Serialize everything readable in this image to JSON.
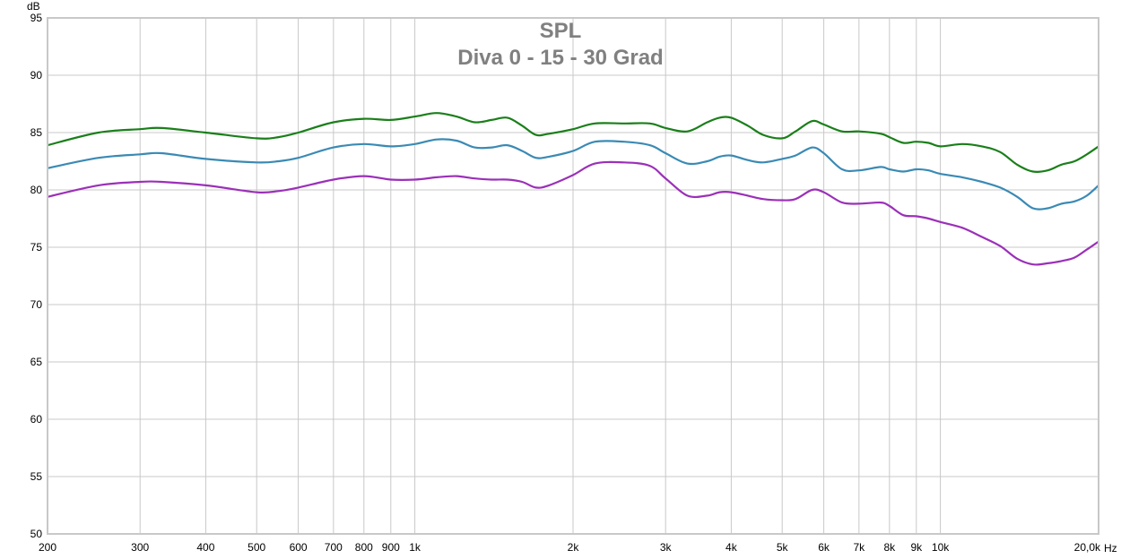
{
  "chart_data": {
    "type": "line",
    "title": "SPL",
    "subtitle": "Diva 0 - 15 - 30 Grad",
    "ylabel": "dB",
    "xlabel": "Hz",
    "x_scale": "log",
    "xlim": [
      200,
      20000
    ],
    "ylim": [
      50,
      95
    ],
    "grid": true,
    "y_ticks": [
      50,
      55,
      60,
      65,
      70,
      75,
      80,
      85,
      90,
      95
    ],
    "x_ticks": [
      {
        "value": 200,
        "label": "200"
      },
      {
        "value": 300,
        "label": "300"
      },
      {
        "value": 400,
        "label": "400"
      },
      {
        "value": 500,
        "label": "500"
      },
      {
        "value": 600,
        "label": "600"
      },
      {
        "value": 700,
        "label": "700"
      },
      {
        "value": 800,
        "label": "800"
      },
      {
        "value": 900,
        "label": "900"
      },
      {
        "value": 1000,
        "label": "1k"
      },
      {
        "value": 2000,
        "label": "2k"
      },
      {
        "value": 3000,
        "label": "3k"
      },
      {
        "value": 4000,
        "label": "4k"
      },
      {
        "value": 5000,
        "label": "5k"
      },
      {
        "value": 6000,
        "label": "6k"
      },
      {
        "value": 7000,
        "label": "7k"
      },
      {
        "value": 8000,
        "label": "8k"
      },
      {
        "value": 9000,
        "label": "9k"
      },
      {
        "value": 10000,
        "label": "10k"
      },
      {
        "value": 20000,
        "label": "20,0k"
      }
    ],
    "series": [
      {
        "color": "#1a7f1a",
        "points": [
          [
            200,
            83.9
          ],
          [
            250,
            85.0
          ],
          [
            300,
            85.3
          ],
          [
            330,
            85.4
          ],
          [
            400,
            85.0
          ],
          [
            500,
            84.5
          ],
          [
            550,
            84.6
          ],
          [
            600,
            85.0
          ],
          [
            700,
            85.9
          ],
          [
            800,
            86.2
          ],
          [
            900,
            86.1
          ],
          [
            1000,
            86.4
          ],
          [
            1100,
            86.7
          ],
          [
            1200,
            86.4
          ],
          [
            1300,
            85.9
          ],
          [
            1400,
            86.1
          ],
          [
            1500,
            86.3
          ],
          [
            1600,
            85.6
          ],
          [
            1700,
            84.8
          ],
          [
            1800,
            84.9
          ],
          [
            2000,
            85.3
          ],
          [
            2200,
            85.8
          ],
          [
            2500,
            85.8
          ],
          [
            2800,
            85.8
          ],
          [
            3000,
            85.4
          ],
          [
            3300,
            85.1
          ],
          [
            3600,
            85.9
          ],
          [
            3800,
            86.3
          ],
          [
            4000,
            86.3
          ],
          [
            4300,
            85.6
          ],
          [
            4600,
            84.8
          ],
          [
            5000,
            84.5
          ],
          [
            5300,
            85.1
          ],
          [
            5700,
            86.0
          ],
          [
            6000,
            85.7
          ],
          [
            6500,
            85.1
          ],
          [
            7000,
            85.1
          ],
          [
            7700,
            84.9
          ],
          [
            8000,
            84.6
          ],
          [
            8500,
            84.1
          ],
          [
            9000,
            84.2
          ],
          [
            9500,
            84.1
          ],
          [
            10000,
            83.8
          ],
          [
            11000,
            84.0
          ],
          [
            12000,
            83.8
          ],
          [
            13000,
            83.3
          ],
          [
            14000,
            82.2
          ],
          [
            15000,
            81.6
          ],
          [
            16000,
            81.7
          ],
          [
            17000,
            82.2
          ],
          [
            18000,
            82.5
          ],
          [
            19000,
            83.1
          ],
          [
            20000,
            83.8
          ]
        ]
      },
      {
        "color": "#3a8ab4",
        "points": [
          [
            200,
            81.9
          ],
          [
            250,
            82.8
          ],
          [
            300,
            83.1
          ],
          [
            330,
            83.2
          ],
          [
            400,
            82.7
          ],
          [
            500,
            82.4
          ],
          [
            550,
            82.5
          ],
          [
            600,
            82.8
          ],
          [
            700,
            83.7
          ],
          [
            800,
            84.0
          ],
          [
            900,
            83.8
          ],
          [
            1000,
            84.0
          ],
          [
            1100,
            84.4
          ],
          [
            1200,
            84.3
          ],
          [
            1300,
            83.7
          ],
          [
            1400,
            83.7
          ],
          [
            1500,
            83.9
          ],
          [
            1600,
            83.4
          ],
          [
            1700,
            82.8
          ],
          [
            1800,
            82.9
          ],
          [
            2000,
            83.4
          ],
          [
            2200,
            84.2
          ],
          [
            2500,
            84.2
          ],
          [
            2800,
            83.9
          ],
          [
            3000,
            83.2
          ],
          [
            3300,
            82.3
          ],
          [
            3600,
            82.5
          ],
          [
            3800,
            82.9
          ],
          [
            4000,
            83.0
          ],
          [
            4300,
            82.6
          ],
          [
            4600,
            82.4
          ],
          [
            5000,
            82.7
          ],
          [
            5300,
            83.0
          ],
          [
            5700,
            83.7
          ],
          [
            6000,
            83.2
          ],
          [
            6500,
            81.8
          ],
          [
            7000,
            81.7
          ],
          [
            7700,
            82.0
          ],
          [
            8000,
            81.8
          ],
          [
            8500,
            81.6
          ],
          [
            9000,
            81.8
          ],
          [
            9500,
            81.7
          ],
          [
            10000,
            81.4
          ],
          [
            11000,
            81.1
          ],
          [
            12000,
            80.7
          ],
          [
            13000,
            80.2
          ],
          [
            14000,
            79.4
          ],
          [
            15000,
            78.4
          ],
          [
            16000,
            78.4
          ],
          [
            17000,
            78.8
          ],
          [
            18000,
            79.0
          ],
          [
            19000,
            79.5
          ],
          [
            20000,
            80.4
          ]
        ]
      },
      {
        "color": "#9b30b8",
        "points": [
          [
            200,
            79.4
          ],
          [
            250,
            80.4
          ],
          [
            300,
            80.7
          ],
          [
            330,
            80.7
          ],
          [
            400,
            80.4
          ],
          [
            500,
            79.8
          ],
          [
            550,
            79.9
          ],
          [
            600,
            80.2
          ],
          [
            700,
            80.9
          ],
          [
            800,
            81.2
          ],
          [
            900,
            80.9
          ],
          [
            1000,
            80.9
          ],
          [
            1100,
            81.1
          ],
          [
            1200,
            81.2
          ],
          [
            1300,
            81.0
          ],
          [
            1400,
            80.9
          ],
          [
            1500,
            80.9
          ],
          [
            1600,
            80.7
          ],
          [
            1700,
            80.2
          ],
          [
            1800,
            80.4
          ],
          [
            2000,
            81.3
          ],
          [
            2200,
            82.3
          ],
          [
            2500,
            82.4
          ],
          [
            2800,
            82.1
          ],
          [
            3000,
            81.0
          ],
          [
            3300,
            79.5
          ],
          [
            3600,
            79.5
          ],
          [
            3800,
            79.8
          ],
          [
            4000,
            79.8
          ],
          [
            4300,
            79.5
          ],
          [
            4600,
            79.2
          ],
          [
            5000,
            79.1
          ],
          [
            5300,
            79.2
          ],
          [
            5700,
            80.0
          ],
          [
            6000,
            79.8
          ],
          [
            6500,
            78.9
          ],
          [
            7000,
            78.8
          ],
          [
            7700,
            78.9
          ],
          [
            8000,
            78.6
          ],
          [
            8500,
            77.8
          ],
          [
            9000,
            77.7
          ],
          [
            9500,
            77.5
          ],
          [
            10000,
            77.2
          ],
          [
            11000,
            76.7
          ],
          [
            12000,
            75.9
          ],
          [
            13000,
            75.1
          ],
          [
            14000,
            74.0
          ],
          [
            15000,
            73.5
          ],
          [
            16000,
            73.6
          ],
          [
            17000,
            73.8
          ],
          [
            18000,
            74.1
          ],
          [
            19000,
            74.8
          ],
          [
            20000,
            75.5
          ]
        ]
      }
    ]
  }
}
